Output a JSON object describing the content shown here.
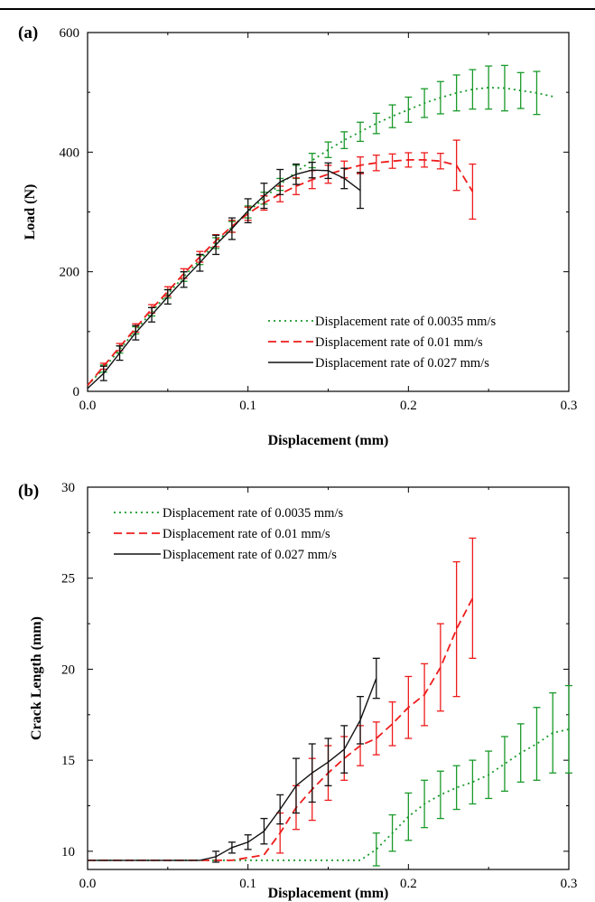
{
  "colors": {
    "rate_0035": "#1a9a2a",
    "rate_001": "#ee1c1c",
    "rate_0027": "#111111"
  },
  "chart_data": [
    {
      "type": "line",
      "panel_label": "(a)",
      "xlabel": "Displacement (mm)",
      "ylabel": "Load (N)",
      "xlim": [
        0.0,
        0.3
      ],
      "ylim": [
        0,
        600
      ],
      "xticks": [
        "0.0",
        "0.1",
        "0.2",
        "0.3"
      ],
      "yticks": [
        "0",
        "200",
        "400",
        "600"
      ],
      "legend_position": "bottom-right",
      "series": [
        {
          "name": "Displacement rate of 0.0035 mm/s",
          "style": "dotted",
          "color_key": "rate_0035",
          "x": [
            0.0,
            0.01,
            0.02,
            0.03,
            0.04,
            0.05,
            0.06,
            0.07,
            0.08,
            0.09,
            0.1,
            0.11,
            0.12,
            0.13,
            0.14,
            0.15,
            0.16,
            0.17,
            0.18,
            0.19,
            0.2,
            0.21,
            0.22,
            0.23,
            0.24,
            0.25,
            0.26,
            0.27,
            0.28,
            0.29
          ],
          "y": [
            10,
            38,
            70,
            102,
            133,
            163,
            192,
            220,
            248,
            275,
            300,
            323,
            346,
            367,
            386,
            404,
            420,
            434,
            448,
            460,
            471,
            482,
            491,
            499,
            505,
            508,
            507,
            503,
            499,
            493
          ],
          "error_bars": {
            "x": [
              0.01,
              0.02,
              0.03,
              0.04,
              0.05,
              0.06,
              0.07,
              0.08,
              0.09,
              0.1,
              0.11,
              0.12,
              0.13,
              0.14,
              0.15,
              0.16,
              0.17,
              0.18,
              0.19,
              0.2,
              0.21,
              0.22,
              0.23,
              0.24,
              0.25,
              0.26,
              0.27,
              0.28
            ],
            "err": [
              6,
              6,
              6,
              7,
              7,
              8,
              8,
              9,
              9,
              10,
              10,
              10,
              11,
              12,
              13,
              14,
              16,
              17,
              19,
              21,
              24,
              27,
              30,
              33,
              36,
              38,
              30,
              36
            ]
          }
        },
        {
          "name": "Displacement rate of 0.01 mm/s",
          "style": "dashed",
          "color_key": "rate_001",
          "x": [
            0.0,
            0.01,
            0.02,
            0.03,
            0.04,
            0.05,
            0.06,
            0.07,
            0.08,
            0.09,
            0.1,
            0.11,
            0.12,
            0.13,
            0.14,
            0.15,
            0.16,
            0.17,
            0.18,
            0.19,
            0.2,
            0.21,
            0.22,
            0.23,
            0.24
          ],
          "y": [
            10,
            42,
            74,
            106,
            138,
            167,
            197,
            225,
            252,
            276,
            297,
            315,
            330,
            343,
            354,
            363,
            371,
            378,
            382,
            385,
            387,
            387,
            385,
            378,
            334
          ],
          "error_bars": {
            "x": [
              0.01,
              0.02,
              0.03,
              0.04,
              0.05,
              0.06,
              0.07,
              0.08,
              0.09,
              0.1,
              0.11,
              0.12,
              0.13,
              0.14,
              0.15,
              0.16,
              0.17,
              0.18,
              0.19,
              0.2,
              0.21,
              0.22,
              0.23,
              0.24
            ],
            "err": [
              5,
              6,
              7,
              7,
              8,
              8,
              9,
              10,
              10,
              11,
              12,
              13,
              14,
              15,
              15,
              14,
              14,
              13,
              12,
              12,
              12,
              13,
              42,
              46
            ]
          }
        },
        {
          "name": "Displacement rate of 0.027 mm/s",
          "style": "solid",
          "color_key": "rate_0027",
          "x": [
            0.0,
            0.01,
            0.02,
            0.03,
            0.04,
            0.05,
            0.06,
            0.07,
            0.08,
            0.09,
            0.1,
            0.11,
            0.12,
            0.13,
            0.14,
            0.15,
            0.16,
            0.17
          ],
          "y": [
            5,
            30,
            64,
            98,
            128,
            158,
            187,
            215,
            245,
            272,
            302,
            327,
            350,
            363,
            370,
            369,
            356,
            336
          ],
          "error_bars": {
            "x": [
              0.01,
              0.02,
              0.03,
              0.04,
              0.05,
              0.06,
              0.07,
              0.08,
              0.09,
              0.1,
              0.11,
              0.12,
              0.13,
              0.14,
              0.15,
              0.16,
              0.17
            ],
            "err": [
              12,
              12,
              12,
              12,
              12,
              13,
              14,
              16,
              18,
              20,
              21,
              21,
              17,
              13,
              13,
              17,
              30
            ]
          }
        }
      ]
    },
    {
      "type": "line",
      "panel_label": "(b)",
      "xlabel": "Displacement (mm)",
      "ylabel": "Crack Length (mm)",
      "xlim": [
        0.0,
        0.3
      ],
      "ylim": [
        9,
        30
      ],
      "xticks": [
        "0.0",
        "0.1",
        "0.2",
        "0.3"
      ],
      "yticks": [
        "10",
        "15",
        "20",
        "25",
        "30"
      ],
      "legend_position": "top-left",
      "series": [
        {
          "name": "Displacement rate of 0.0035 mm/s",
          "style": "dotted",
          "color_key": "rate_0035",
          "x": [
            0.0,
            0.1,
            0.17,
            0.18,
            0.19,
            0.2,
            0.21,
            0.22,
            0.23,
            0.24,
            0.25,
            0.26,
            0.27,
            0.28,
            0.29,
            0.3
          ],
          "y": [
            9.5,
            9.5,
            9.5,
            10.1,
            11.0,
            11.9,
            12.6,
            13.1,
            13.5,
            13.8,
            14.2,
            14.8,
            15.4,
            15.9,
            16.5,
            16.7
          ],
          "error_bars": {
            "x": [
              0.18,
              0.19,
              0.2,
              0.21,
              0.22,
              0.23,
              0.24,
              0.25,
              0.26,
              0.27,
              0.28,
              0.29,
              0.3
            ],
            "err": [
              0.9,
              1.0,
              1.3,
              1.3,
              1.3,
              1.2,
              1.2,
              1.3,
              1.5,
              1.6,
              2.0,
              2.2,
              2.4
            ]
          }
        },
        {
          "name": "Displacement rate of 0.01 mm/s",
          "style": "dashed",
          "color_key": "rate_001",
          "x": [
            0.0,
            0.09,
            0.11,
            0.12,
            0.13,
            0.14,
            0.15,
            0.16,
            0.17,
            0.18,
            0.19,
            0.2,
            0.21,
            0.22,
            0.23,
            0.24
          ],
          "y": [
            9.5,
            9.5,
            9.8,
            11.0,
            12.4,
            13.4,
            14.3,
            15.1,
            15.8,
            16.2,
            17.0,
            17.9,
            18.6,
            20.1,
            22.2,
            23.9
          ],
          "error_bars": {
            "x": [
              0.12,
              0.13,
              0.14,
              0.15,
              0.16,
              0.17,
              0.18,
              0.19,
              0.2,
              0.21,
              0.22,
              0.23,
              0.24
            ],
            "err": [
              1.1,
              1.2,
              1.7,
              1.5,
              1.2,
              1.1,
              0.9,
              1.2,
              1.7,
              1.7,
              2.4,
              3.7,
              3.3
            ]
          }
        },
        {
          "name": "Displacement rate of 0.027 mm/s",
          "style": "solid",
          "color_key": "rate_0027",
          "x": [
            0.0,
            0.07,
            0.08,
            0.09,
            0.1,
            0.11,
            0.12,
            0.13,
            0.14,
            0.15,
            0.16,
            0.17,
            0.18
          ],
          "y": [
            9.5,
            9.5,
            9.7,
            10.2,
            10.5,
            11.1,
            12.3,
            13.6,
            14.3,
            14.9,
            15.6,
            17.2,
            19.5
          ],
          "error_bars": {
            "x": [
              0.08,
              0.09,
              0.1,
              0.11,
              0.12,
              0.13,
              0.14,
              0.15,
              0.16,
              0.17,
              0.18
            ],
            "err": [
              0.3,
              0.3,
              0.4,
              0.7,
              0.8,
              1.5,
              1.6,
              1.3,
              1.3,
              1.3,
              1.1
            ]
          }
        }
      ]
    }
  ]
}
